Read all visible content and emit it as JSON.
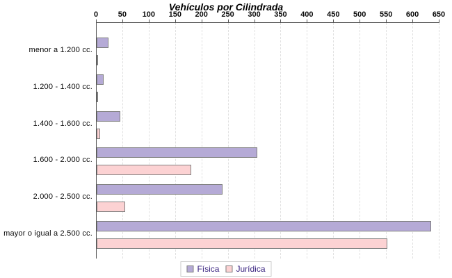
{
  "title": "Vehículos por Cilindrada",
  "chart_data": {
    "type": "bar",
    "orientation": "horizontal",
    "title": "Vehículos por Cilindrada",
    "categories": [
      "menor a 1.200 cc.",
      "1.200 - 1.400 cc.",
      "1.400 - 1.600 cc.",
      "1.600 - 2.000 cc.",
      "2.000 - 2.500 cc.",
      "mayor o igual a 2.500 cc."
    ],
    "series": [
      {
        "name": "Física",
        "color": "#b5aad6",
        "values": [
          23,
          13,
          45,
          305,
          239,
          634
        ]
      },
      {
        "name": "Jurídica",
        "color": "#fcd2d3",
        "values": [
          1,
          3,
          6,
          179,
          54,
          551
        ]
      }
    ],
    "xlim": [
      0,
      650
    ],
    "x_ticks": [
      0,
      50,
      100,
      150,
      200,
      250,
      300,
      350,
      400,
      450,
      500,
      550,
      600,
      650
    ],
    "grid": "dashed-vertical-at-ticks",
    "legend_position": "bottom-center",
    "axis_color": "#555555",
    "bar_border_color": "#7f7f7f",
    "gridline_color": "#e0e0e0"
  },
  "legend": {
    "items": [
      {
        "label": "Física",
        "color": "#b5aad6"
      },
      {
        "label": "Jurídica",
        "color": "#fcd2d3"
      }
    ]
  }
}
